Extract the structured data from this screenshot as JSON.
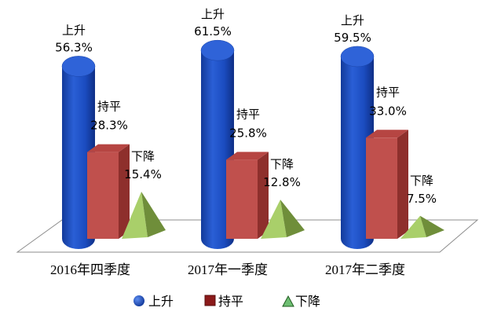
{
  "chart_data": {
    "type": "bar",
    "style": "3d",
    "categories": [
      "2016年四季度",
      "2017年一季度",
      "2017年二季度"
    ],
    "series": [
      {
        "name": "上升",
        "shape": "cylinder",
        "color": "#1e4fbf",
        "values": [
          56.3,
          61.5,
          59.5
        ],
        "labels": [
          "56.3%",
          "61.5%",
          "59.5%"
        ]
      },
      {
        "name": "持平",
        "shape": "box",
        "color": "#c0504d",
        "values": [
          28.3,
          25.8,
          33.0
        ],
        "labels": [
          "28.3%",
          "25.8%",
          "33.0%"
        ]
      },
      {
        "name": "下降",
        "shape": "pyramid",
        "color": "#9bbb59",
        "values": [
          15.4,
          12.8,
          7.5
        ],
        "labels": [
          "15.4%",
          "12.8%",
          "7.5%"
        ]
      }
    ],
    "ylim": [
      0,
      70
    ],
    "grid": false,
    "legend": "bottom"
  }
}
